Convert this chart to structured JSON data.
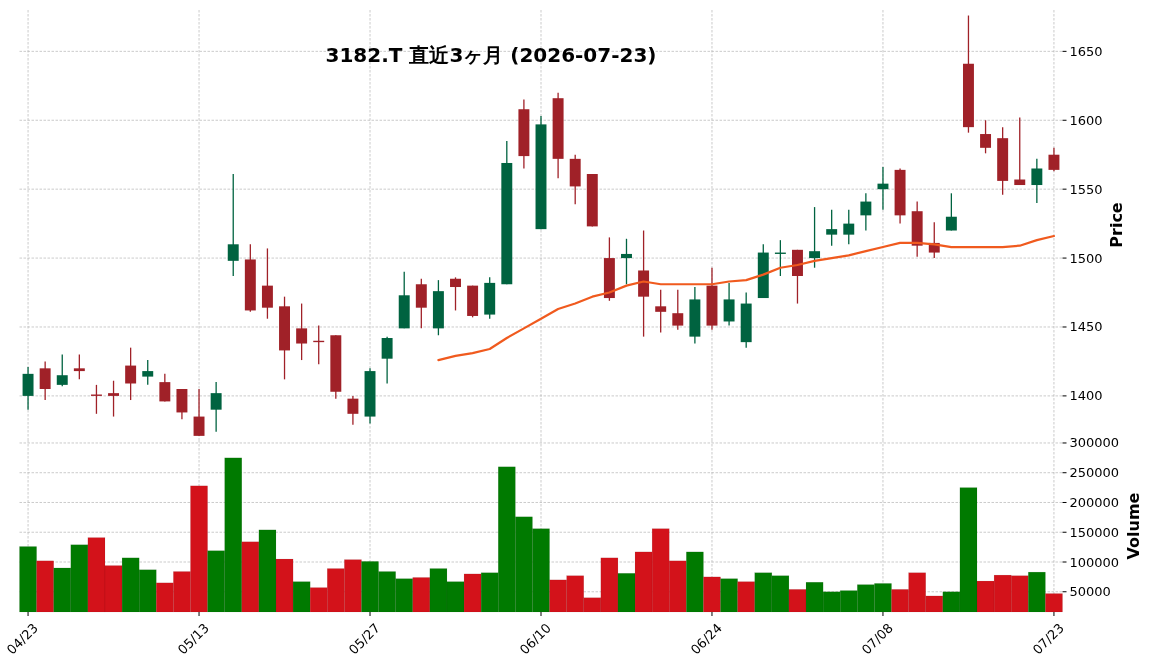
{
  "chart_data": [
    {
      "type": "candlestick",
      "title": "3182.T  直近3ヶ月  (2026-07-23)",
      "ylabel": "Price",
      "categories": [
        null,
        null,
        null,
        null,
        null,
        null,
        null,
        null,
        null,
        null,
        null,
        null,
        null,
        null,
        null,
        null,
        null,
        null,
        null,
        null,
        null,
        null,
        null,
        null,
        null,
        null,
        null,
        null,
        null,
        null,
        null,
        null,
        null,
        null,
        null,
        null,
        null,
        null,
        null,
        null,
        null,
        null,
        null,
        null,
        null,
        null,
        null,
        null,
        null,
        null,
        null,
        null,
        null,
        null,
        null,
        null,
        null,
        null,
        null,
        null,
        null
      ],
      "ohlc": [
        [
          1400,
          1421,
          1390,
          1416
        ],
        [
          1420,
          1425,
          1397,
          1405
        ],
        [
          1408,
          1430,
          1407,
          1415
        ],
        [
          1420,
          1430,
          1412,
          1418
        ],
        [
          1401,
          1408,
          1387,
          1400
        ],
        [
          1402,
          1411,
          1385,
          1400
        ],
        [
          1422,
          1435,
          1397,
          1409
        ],
        [
          1414,
          1426,
          1408,
          1418
        ],
        [
          1410,
          1416,
          1396,
          1396
        ],
        [
          1405,
          1405,
          1383,
          1388
        ],
        [
          1385,
          1405,
          1371,
          1371
        ],
        [
          1390,
          1410,
          1374,
          1402
        ],
        [
          1498,
          1561,
          1487,
          1510
        ],
        [
          1499,
          1510,
          1461,
          1462
        ],
        [
          1480,
          1507,
          1456,
          1464
        ],
        [
          1465,
          1472,
          1412,
          1433
        ],
        [
          1449,
          1467,
          1426,
          1438
        ],
        [
          1440,
          1451,
          1423,
          1439
        ],
        [
          1444,
          1444,
          1398,
          1403
        ],
        [
          1398,
          1400,
          1379,
          1387
        ],
        [
          1385,
          1420,
          1380,
          1418
        ],
        [
          1427,
          1443,
          1409,
          1442
        ],
        [
          1449,
          1490,
          1449,
          1473
        ],
        [
          1481,
          1485,
          1449,
          1464
        ],
        [
          1449,
          1484,
          1444,
          1476
        ],
        [
          1485,
          1486,
          1462,
          1479
        ],
        [
          1480,
          1480,
          1457,
          1458
        ],
        [
          1459,
          1486,
          1456,
          1482
        ],
        [
          1481,
          1585,
          1481,
          1569
        ],
        [
          1608,
          1615,
          1565,
          1574
        ],
        [
          1521,
          1603,
          1521,
          1597
        ],
        [
          1616,
          1620,
          1558,
          1572
        ],
        [
          1572,
          1575,
          1539,
          1552
        ],
        [
          1561,
          1561,
          1523,
          1523
        ],
        [
          1500,
          1515,
          1469,
          1471
        ],
        [
          1500,
          1514,
          1481,
          1503
        ],
        [
          1491,
          1520,
          1443,
          1472
        ],
        [
          1465,
          1477,
          1446,
          1461
        ],
        [
          1460,
          1477,
          1448,
          1451
        ],
        [
          1443,
          1479,
          1438,
          1470
        ],
        [
          1480,
          1493,
          1448,
          1451
        ],
        [
          1454,
          1482,
          1451,
          1470
        ],
        [
          1439,
          1475,
          1435,
          1467
        ],
        [
          1471,
          1510,
          1471,
          1504
        ],
        [
          1503,
          1513,
          1487,
          1504
        ],
        [
          1506,
          1506,
          1467,
          1487
        ],
        [
          1500,
          1537,
          1493,
          1505
        ],
        [
          1517,
          1535,
          1509,
          1521
        ],
        [
          1517,
          1535,
          1510,
          1525
        ],
        [
          1531,
          1547,
          1520,
          1541
        ],
        [
          1550,
          1566,
          1535,
          1554
        ],
        [
          1564,
          1565,
          1525,
          1531
        ],
        [
          1534,
          1541,
          1501,
          1509
        ],
        [
          1511,
          1526,
          1500,
          1504
        ],
        [
          1520,
          1547,
          1520,
          1530
        ],
        [
          1641,
          1676,
          1591,
          1595
        ],
        [
          1590,
          1600,
          1576,
          1580
        ],
        [
          1587,
          1595,
          1546,
          1556
        ],
        [
          1557,
          1602,
          1553,
          1553
        ],
        [
          1553,
          1572,
          1540,
          1565
        ],
        [
          1575,
          1580,
          1563,
          1564
        ]
      ],
      "colors": [
        "#006340",
        "#a02128",
        "#006340",
        "#a02128",
        "#a02128",
        "#a02128",
        "#a02128",
        "#006340",
        "#a02128",
        "#a02128",
        "#a02128",
        "#006340",
        "#006340",
        "#a02128",
        "#a02128",
        "#a02128",
        "#a02128",
        "#a02128",
        "#a02128",
        "#a02128",
        "#006340",
        "#006340",
        "#006340",
        "#a02128",
        "#006340",
        "#a02128",
        "#a02128",
        "#006340",
        "#006340",
        "#a02128",
        "#006340",
        "#a02128",
        "#a02128",
        "#a02128",
        "#a02128",
        "#006340",
        "#a02128",
        "#a02128",
        "#a02128",
        "#006340",
        "#a02128",
        "#006340",
        "#006340",
        "#006340",
        "#006340",
        "#a02128",
        "#006340",
        "#006340",
        "#006340",
        "#006340",
        "#006340",
        "#a02128",
        "#a02128",
        "#a02128",
        "#006340",
        "#a02128",
        "#a02128",
        "#a02128",
        "#a02128",
        "#006340",
        "#a02128"
      ],
      "series": [
        {
          "type": "line",
          "color": "#f05a1e",
          "values": [
            null,
            null,
            null,
            null,
            null,
            null,
            null,
            null,
            null,
            null,
            null,
            null,
            null,
            null,
            null,
            null,
            null,
            null,
            null,
            null,
            null,
            null,
            null,
            null,
            1426,
            1429,
            1431,
            1434,
            1442,
            1449,
            1456,
            1463,
            1467,
            1472,
            1475,
            1480,
            1483,
            1481,
            1481,
            1481,
            1481,
            1483,
            1484,
            1488,
            1493,
            1495,
            1498,
            1500,
            1502,
            1505,
            1508,
            1511,
            1511,
            1510,
            1508,
            1508,
            1508,
            1508,
            1509,
            1513,
            1516
          ]
        }
      ],
      "ylim": [
        1368,
        1680
      ],
      "yticks": [
        1400,
        1450,
        1500,
        1550,
        1600,
        1650
      ],
      "grid": true,
      "tick_labels": "y"
    },
    {
      "type": "bar",
      "ylabel": "Volume",
      "categories": [
        "04/23",
        null,
        null,
        null,
        null,
        null,
        null,
        null,
        null,
        null,
        "05/13",
        null,
        null,
        null,
        null,
        null,
        null,
        null,
        null,
        null,
        "05/27",
        null,
        null,
        null,
        null,
        null,
        null,
        null,
        null,
        null,
        "06/10",
        null,
        null,
        null,
        null,
        null,
        null,
        null,
        null,
        null,
        "06/24",
        null,
        null,
        null,
        null,
        null,
        null,
        null,
        null,
        null,
        "07/08",
        null,
        null,
        null,
        null,
        null,
        null,
        null,
        null,
        null,
        "07/23"
      ],
      "values": [
        126000,
        102000,
        90000,
        129000,
        141000,
        94000,
        107000,
        87000,
        65000,
        84000,
        228000,
        119000,
        275000,
        134000,
        154000,
        105000,
        67000,
        57000,
        89000,
        104000,
        101000,
        84000,
        72000,
        74000,
        89000,
        67000,
        80000,
        82000,
        260000,
        176000,
        156000,
        70000,
        77000,
        40000,
        107000,
        81000,
        117000,
        156000,
        102000,
        117000,
        75000,
        72000,
        67000,
        82000,
        77000,
        54000,
        66000,
        50000,
        52000,
        62000,
        64000,
        54000,
        82000,
        43000,
        50000,
        225000,
        68000,
        78000,
        77000,
        83000,
        47000
      ],
      "colors": [
        "#007a00",
        "#d3121a",
        "#007a00",
        "#007a00",
        "#d3121a",
        "#d3121a",
        "#007a00",
        "#007a00",
        "#d3121a",
        "#d3121a",
        "#d3121a",
        "#007a00",
        "#007a00",
        "#d3121a",
        "#007a00",
        "#d3121a",
        "#007a00",
        "#d3121a",
        "#d3121a",
        "#d3121a",
        "#007a00",
        "#007a00",
        "#007a00",
        "#d3121a",
        "#007a00",
        "#007a00",
        "#d3121a",
        "#007a00",
        "#007a00",
        "#007a00",
        "#007a00",
        "#d3121a",
        "#d3121a",
        "#d3121a",
        "#d3121a",
        "#007a00",
        "#d3121a",
        "#d3121a",
        "#d3121a",
        "#007a00",
        "#d3121a",
        "#007a00",
        "#d3121a",
        "#007a00",
        "#007a00",
        "#d3121a",
        "#007a00",
        "#007a00",
        "#007a00",
        "#007a00",
        "#007a00",
        "#d3121a",
        "#d3121a",
        "#d3121a",
        "#007a00",
        "#007a00",
        "#d3121a",
        "#d3121a",
        "#d3121a",
        "#007a00",
        "#d3121a"
      ],
      "ylim": [
        16000,
        305000
      ],
      "yticks": [
        50000,
        100000,
        150000,
        200000,
        250000,
        300000
      ],
      "grid": true
    }
  ]
}
